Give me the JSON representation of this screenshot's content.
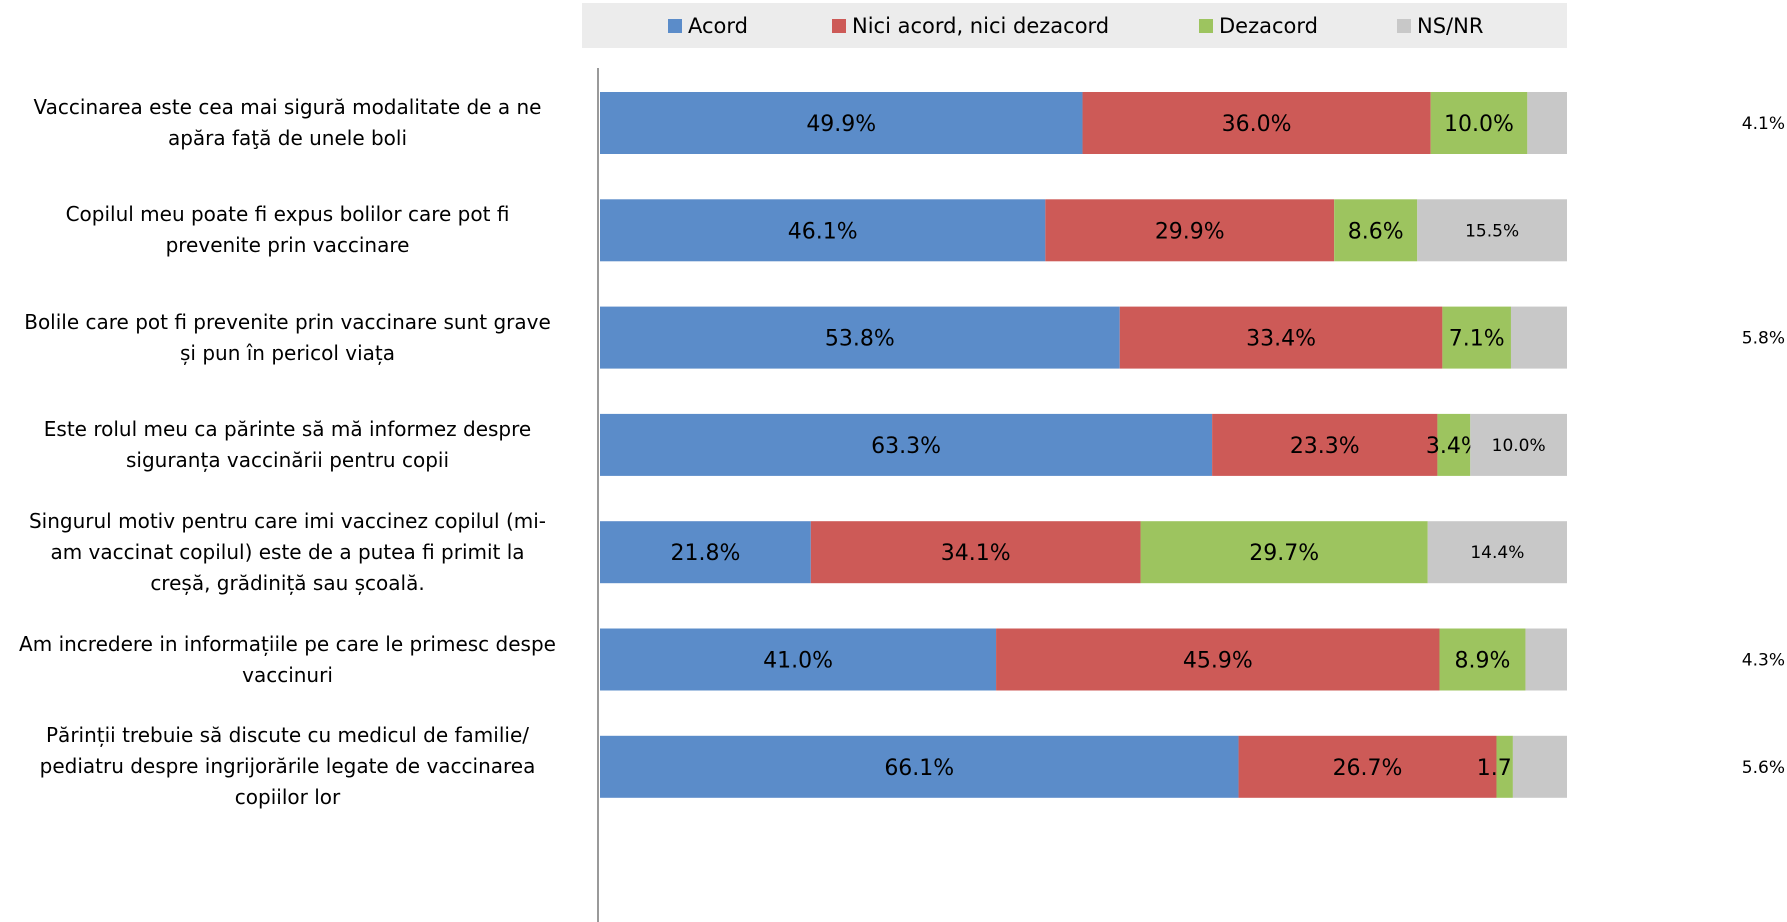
{
  "chart_data": {
    "type": "bar",
    "orientation": "horizontal",
    "stacked": true,
    "categories": [
      "Vaccinarea este cea mai sigură modalitate de a ne apăra faţă de unele boli",
      "Copilul meu poate fi  expus  bolilor care pot fi prevenite prin vaccinare",
      "Bolile care pot fi prevenite prin vaccinare sunt grave și pun în pericol viața",
      "Este rolul meu ca părinte să mă informez despre siguranța vaccinării pentru copii",
      "Singurul motiv pentru care imi vaccinez copilul (mi-am vaccinat copilul) este  de a putea fi primit  la creșă, grădiniță sau școală.",
      "Am incredere in informațiile pe care le primesc despe vaccinuri",
      "Părinții trebuie să discute cu medicul de familie/ pediatru despre ingrijorările legate de vaccinarea copiilor lor"
    ],
    "category_lines": [
      [
        "Vaccinarea este cea mai sigură modalitate de a ne",
        "apăra faţă de unele boli"
      ],
      [
        "Copilul meu poate fi  expus  bolilor care pot fi",
        "prevenite prin vaccinare"
      ],
      [
        "Bolile care pot fi prevenite prin vaccinare sunt grave",
        "și pun în pericol viața"
      ],
      [
        "Este rolul meu ca părinte să mă informez despre",
        "siguranța vaccinării pentru copii"
      ],
      [
        "Singurul motiv pentru care imi vaccinez copilul (mi-",
        "am vaccinat copilul) este  de a putea fi primit  la",
        "creșă, grădiniță sau școală."
      ],
      [
        "Am incredere in informațiile pe care le primesc despe",
        "vaccinuri"
      ],
      [
        "Părinții trebuie să discute cu medicul de familie/",
        "pediatru despre ingrijorările legate de vaccinarea",
        "copiilor lor"
      ]
    ],
    "series": [
      {
        "name": "Acord",
        "color": "#5b8cc9",
        "values": [
          49.9,
          46.1,
          53.8,
          63.3,
          21.8,
          41.0,
          66.1
        ]
      },
      {
        "name": "Nici acord, nici dezacord",
        "color": "#cd5a57",
        "values": [
          36.0,
          29.9,
          33.4,
          23.3,
          34.1,
          45.9,
          26.7
        ]
      },
      {
        "name": "Dezacord",
        "color": "#9dc45f",
        "values": [
          10.0,
          8.6,
          7.1,
          3.4,
          29.7,
          8.9,
          1.7
        ]
      },
      {
        "name": "NS/NR",
        "color": "#c8c8c8",
        "values": [
          4.1,
          15.5,
          5.8,
          10.0,
          14.4,
          4.3,
          5.6
        ]
      }
    ],
    "data_labels": [
      [
        "49.9%",
        "36.0%",
        "10.0%",
        "4.1%"
      ],
      [
        "46.1%",
        "29.9%",
        "8.6%",
        "15.5%"
      ],
      [
        "53.8%",
        "33.4%",
        "7.1%",
        "5.8%"
      ],
      [
        "63.3%",
        "23.3%",
        "3.4%",
        "10.0%"
      ],
      [
        "21.8%",
        "34.1%",
        "29.7%",
        "14.4%"
      ],
      [
        "41.0%",
        "45.9%",
        "8.9%",
        "4.3%"
      ],
      [
        "66.1%",
        "26.7%",
        "1.7%",
        "5.6%"
      ]
    ],
    "xlim": [
      0,
      100
    ],
    "legend_position": "top",
    "grid": false
  }
}
